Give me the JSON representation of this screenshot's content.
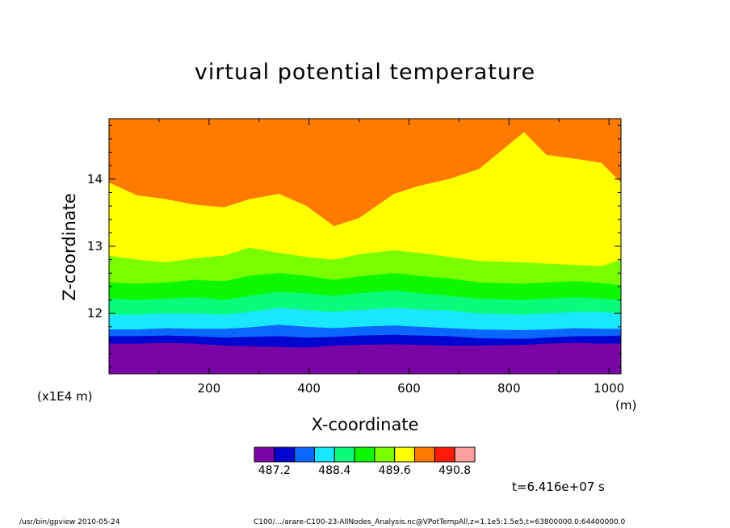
{
  "chart_data": {
    "type": "contour",
    "title": "virtual potential temperature",
    "xlabel": "X-coordinate",
    "ylabel": "Z-coordinate",
    "x_unit": "(m)",
    "y_unit": "(x1E4 m)",
    "xlim": [
      0,
      1024
    ],
    "ylim": [
      11.1,
      14.9
    ],
    "x_ticks": [
      "200",
      "400",
      "600",
      "800",
      "1000"
    ],
    "y_ticks": [
      "12",
      "13",
      "14"
    ],
    "colorbar": {
      "colors": [
        "#7a05a5",
        "#0006d0",
        "#0a66ff",
        "#19e6ff",
        "#0afa7c",
        "#0df800",
        "#7afd00",
        "#ffff00",
        "#ff7a00",
        "#ff1a0a",
        "#ff9e9e"
      ],
      "tick_labels": [
        "487.2",
        "488.4",
        "489.6",
        "490.8"
      ]
    },
    "contour_boundaries": [
      {
        "upper_color": "#0006d0",
        "z": [
          11.55,
          11.55,
          11.56,
          11.55,
          11.52,
          11.51,
          11.5,
          11.49,
          11.52,
          11.53,
          11.54,
          11.53,
          11.52,
          11.52,
          11.53,
          11.55,
          11.56,
          11.55,
          11.55
        ]
      },
      {
        "upper_color": "#0a66ff",
        "z": [
          11.66,
          11.66,
          11.67,
          11.66,
          11.64,
          11.65,
          11.66,
          11.64,
          11.65,
          11.67,
          11.68,
          11.67,
          11.66,
          11.63,
          11.62,
          11.64,
          11.66,
          11.66,
          11.67
        ]
      },
      {
        "upper_color": "#19e6ff",
        "z": [
          11.76,
          11.76,
          11.78,
          11.77,
          11.77,
          11.79,
          11.83,
          11.8,
          11.78,
          11.8,
          11.82,
          11.8,
          11.78,
          11.76,
          11.75,
          11.76,
          11.78,
          11.77,
          11.77
        ]
      },
      {
        "upper_color": "#0afa7c",
        "z": [
          11.98,
          11.98,
          12.0,
          12.0,
          11.98,
          12.02,
          12.08,
          12.05,
          12.02,
          12.05,
          12.08,
          12.06,
          12.04,
          12.0,
          11.98,
          12.0,
          12.02,
          12.02,
          12.0
        ]
      },
      {
        "upper_color": "#0df800",
        "z": [
          12.22,
          12.2,
          12.22,
          12.24,
          12.2,
          12.26,
          12.32,
          12.3,
          12.26,
          12.3,
          12.34,
          12.3,
          12.26,
          12.22,
          12.2,
          12.22,
          12.24,
          12.22,
          12.2
        ]
      },
      {
        "upper_color": "#7afd00",
        "z": [
          12.46,
          12.44,
          12.46,
          12.5,
          12.48,
          12.56,
          12.6,
          12.56,
          12.5,
          12.55,
          12.6,
          12.56,
          12.52,
          12.46,
          12.44,
          12.46,
          12.48,
          12.45,
          12.42
        ]
      },
      {
        "upper_color": "#ffff00",
        "z": [
          12.86,
          12.8,
          12.76,
          12.82,
          12.86,
          12.98,
          12.9,
          12.84,
          12.8,
          12.88,
          12.94,
          12.9,
          12.84,
          12.78,
          12.76,
          12.74,
          12.72,
          12.7,
          12.8
        ]
      },
      {
        "upper_color": "#ff7a00",
        "z": [
          13.95,
          13.76,
          13.7,
          13.62,
          13.58,
          13.7,
          13.78,
          13.6,
          13.3,
          13.42,
          13.78,
          13.9,
          14.0,
          14.15,
          14.7,
          14.36,
          14.3,
          14.24,
          13.95
        ]
      }
    ],
    "contour_x": [
      0,
      55,
      115,
      170,
      230,
      280,
      340,
      395,
      450,
      500,
      570,
      620,
      680,
      740,
      830,
      875,
      935,
      985,
      1024
    ]
  },
  "annotations": {
    "time": "t=6.416e+07 s",
    "footer_left": "/usr/bin/gpview   2010-05-24",
    "footer_right": "C100/.../arare-C100-23-AllNodes_Analysis.nc@VPotTempAll,z=1.1e5:1.5e5,t=63800000.0:64400000.0"
  }
}
